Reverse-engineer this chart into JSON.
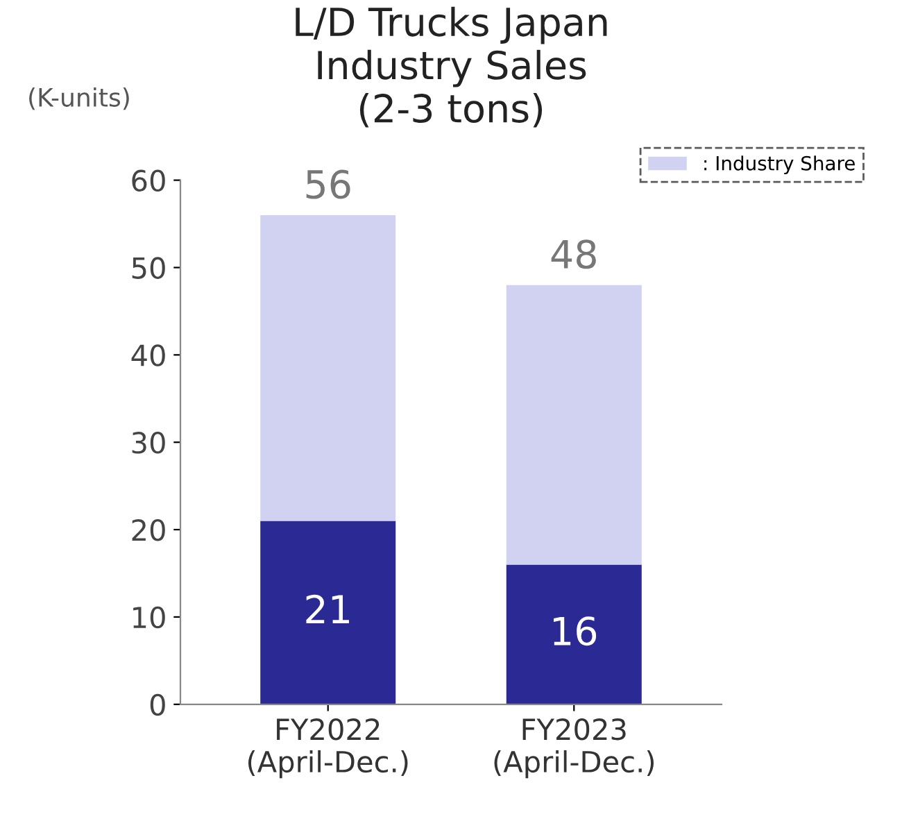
{
  "chart_data": {
    "type": "bar",
    "title": "L/D Trucks Japan\nIndustry Sales\n(2-3 tons)",
    "ylabel": "(K-units)",
    "categories": [
      "FY2022\n(April-Dec.)",
      "FY2023\n(April-Dec.)"
    ],
    "stacked": true,
    "series": [
      {
        "color": "#2b2a94",
        "values": [
          21,
          16
        ],
        "value_labels": [
          "21",
          "16"
        ]
      },
      {
        "name": ": Industry Share",
        "color": "#d1d1f2",
        "values": [
          35,
          32
        ]
      }
    ],
    "totals": [
      "56",
      "48"
    ],
    "ylim": [
      0,
      60
    ],
    "yticks": [
      0,
      10,
      20,
      30,
      40,
      50,
      60
    ],
    "legend": "top right",
    "grid": false
  }
}
